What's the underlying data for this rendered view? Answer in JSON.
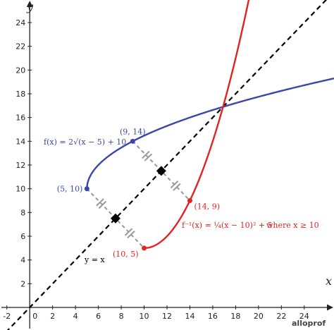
{
  "chart_data": {
    "type": "line",
    "xlabel": "x",
    "ylabel": "y",
    "xlim": [
      -2.6,
      26.6
    ],
    "ylim": [
      -1.9,
      25.9
    ],
    "x_ticks": [
      -2,
      2,
      4,
      6,
      8,
      10,
      12,
      14,
      16,
      18,
      20,
      22,
      24
    ],
    "y_ticks": [
      2,
      4,
      6,
      8,
      10,
      12,
      14,
      16,
      18,
      20,
      22,
      24
    ],
    "origin_label": "0",
    "colors": {
      "f": "#3b46a8",
      "finv": "#e3231f",
      "identity": "#000000",
      "segment": "#999999",
      "marker": "#000000"
    },
    "series": [
      {
        "id": "f",
        "label": "f(x) = 2√(x − 5) + 10",
        "x_start": 5,
        "x_end": 26.6
      },
      {
        "id": "finv",
        "label_main": "f⁻¹(x) = ¼(x − 10)² + 5",
        "label_cond": "where x ≥ 10",
        "x_start": 10,
        "x_end": 22.2
      },
      {
        "id": "identity",
        "label": "y = x"
      }
    ],
    "points": [
      {
        "x": 5,
        "y": 10,
        "label": "(5, 10)",
        "color": "#3b46a8"
      },
      {
        "x": 9,
        "y": 14,
        "label": "(9, 14)",
        "color": "#3b46a8"
      },
      {
        "x": 10,
        "y": 5,
        "label": "(10, 5)",
        "color": "#e3231f"
      },
      {
        "x": 14,
        "y": 9,
        "label": "(14, 9)",
        "color": "#e3231f"
      }
    ],
    "reflections": [
      {
        "from": [
          5,
          10
        ],
        "to": [
          10,
          5
        ],
        "mid": [
          7.5,
          7.5
        ]
      },
      {
        "from": [
          9,
          14
        ],
        "to": [
          14,
          9
        ],
        "mid": [
          11.5,
          11.5
        ]
      }
    ]
  },
  "logo_text": "alloprof"
}
